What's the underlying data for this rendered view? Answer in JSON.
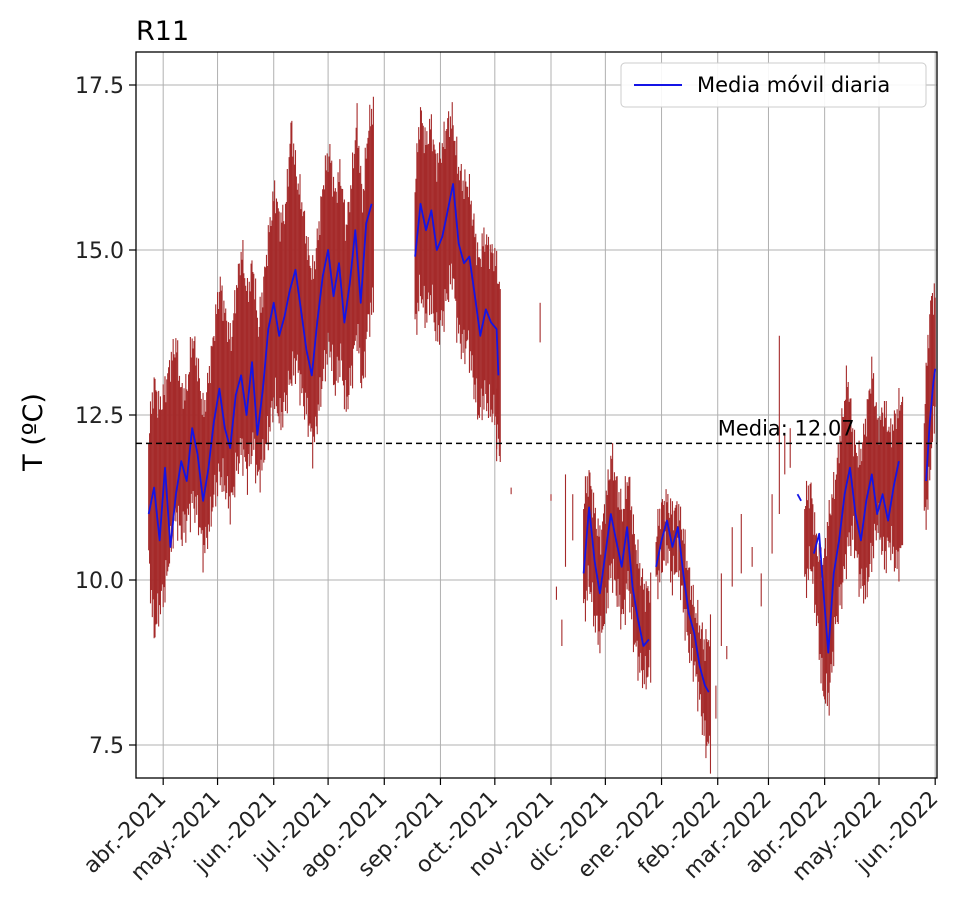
{
  "chart_data": {
    "type": "line",
    "title": "R11",
    "xlabel": "",
    "ylabel": "T (ºC)",
    "ylim": [
      7.0,
      18.0
    ],
    "xlim": [
      "2021-03-17",
      "2022-06-02"
    ],
    "yticks": [
      "7.5",
      "10.0",
      "12.5",
      "15.0",
      "17.5"
    ],
    "ytick_values": [
      7.5,
      10.0,
      12.5,
      15.0,
      17.5
    ],
    "xticks": [
      {
        "date": "2021-04-01",
        "label": "abr.-2021"
      },
      {
        "date": "2021-05-01",
        "label": "may.-2021"
      },
      {
        "date": "2021-06-01",
        "label": "jun.-2021"
      },
      {
        "date": "2021-07-01",
        "label": "jul.-2021"
      },
      {
        "date": "2021-08-01",
        "label": "ago.-2021"
      },
      {
        "date": "2021-09-01",
        "label": "sep.-2021"
      },
      {
        "date": "2021-10-01",
        "label": "oct.-2021"
      },
      {
        "date": "2021-11-01",
        "label": "nov.-2021"
      },
      {
        "date": "2021-12-01",
        "label": "dic.-2021"
      },
      {
        "date": "2022-01-01",
        "label": "ene.-2022"
      },
      {
        "date": "2022-02-01",
        "label": "feb.-2022"
      },
      {
        "date": "2022-03-01",
        "label": "mar.-2022"
      },
      {
        "date": "2022-04-01",
        "label": "abr.-2022"
      },
      {
        "date": "2022-05-01",
        "label": "may.-2022"
      },
      {
        "date": "2022-06-01",
        "label": "jun.-2022"
      }
    ],
    "grid": true,
    "legend_position": "top-right",
    "mean_line": {
      "value": 12.07,
      "label": "Media: 12.07",
      "style": "dashed",
      "color": "#000000"
    },
    "series": [
      {
        "name": "Media móvil diaria",
        "color": "#1414e6",
        "segments": [
          [
            [
              "2021-03-24",
              11.0
            ],
            [
              "2021-03-27",
              11.4
            ],
            [
              "2021-03-30",
              10.6
            ],
            [
              "2021-04-02",
              11.7
            ],
            [
              "2021-04-05",
              10.5
            ],
            [
              "2021-04-08",
              11.3
            ],
            [
              "2021-04-11",
              11.8
            ],
            [
              "2021-04-14",
              11.5
            ],
            [
              "2021-04-17",
              12.3
            ],
            [
              "2021-04-20",
              11.9
            ],
            [
              "2021-04-23",
              11.2
            ],
            [
              "2021-04-26",
              11.7
            ],
            [
              "2021-04-29",
              12.4
            ],
            [
              "2021-05-02",
              12.9
            ],
            [
              "2021-05-05",
              12.3
            ],
            [
              "2021-05-08",
              12.0
            ],
            [
              "2021-05-11",
              12.8
            ],
            [
              "2021-05-14",
              13.1
            ],
            [
              "2021-05-17",
              12.5
            ],
            [
              "2021-05-20",
              13.3
            ],
            [
              "2021-05-23",
              12.2
            ],
            [
              "2021-05-26",
              12.9
            ],
            [
              "2021-05-29",
              13.8
            ],
            [
              "2021-06-01",
              14.2
            ],
            [
              "2021-06-04",
              13.7
            ],
            [
              "2021-06-07",
              14.0
            ],
            [
              "2021-06-10",
              14.4
            ],
            [
              "2021-06-13",
              14.7
            ],
            [
              "2021-06-16",
              14.1
            ],
            [
              "2021-06-19",
              13.5
            ],
            [
              "2021-06-22",
              13.1
            ],
            [
              "2021-06-25",
              13.9
            ],
            [
              "2021-06-28",
              14.6
            ],
            [
              "2021-07-01",
              15.0
            ],
            [
              "2021-07-04",
              14.3
            ],
            [
              "2021-07-07",
              14.8
            ],
            [
              "2021-07-10",
              13.9
            ],
            [
              "2021-07-13",
              14.5
            ],
            [
              "2021-07-16",
              15.3
            ],
            [
              "2021-07-19",
              14.2
            ],
            [
              "2021-07-22",
              15.4
            ],
            [
              "2021-07-25",
              15.7
            ]
          ],
          [
            [
              "2021-08-18",
              14.9
            ],
            [
              "2021-08-21",
              15.7
            ],
            [
              "2021-08-24",
              15.3
            ],
            [
              "2021-08-27",
              15.6
            ],
            [
              "2021-08-30",
              15.0
            ],
            [
              "2021-09-02",
              15.2
            ],
            [
              "2021-09-05",
              15.6
            ],
            [
              "2021-09-08",
              16.0
            ],
            [
              "2021-09-11",
              15.1
            ],
            [
              "2021-09-14",
              14.8
            ],
            [
              "2021-09-17",
              14.9
            ],
            [
              "2021-09-20",
              14.3
            ],
            [
              "2021-09-23",
              13.7
            ],
            [
              "2021-09-26",
              14.1
            ],
            [
              "2021-09-29",
              13.9
            ],
            [
              "2021-10-02",
              13.8
            ],
            [
              "2021-10-03",
              13.1
            ]
          ],
          [
            [
              "2021-11-19",
              10.1
            ],
            [
              "2021-11-22",
              11.1
            ],
            [
              "2021-11-25",
              10.3
            ],
            [
              "2021-11-28",
              9.8
            ],
            [
              "2021-12-01",
              10.4
            ],
            [
              "2021-12-04",
              11.0
            ],
            [
              "2021-12-07",
              10.6
            ],
            [
              "2021-12-10",
              10.2
            ],
            [
              "2021-12-13",
              10.8
            ],
            [
              "2021-12-16",
              9.9
            ],
            [
              "2021-12-19",
              9.4
            ],
            [
              "2021-12-22",
              9.0
            ],
            [
              "2021-12-25",
              9.1
            ]
          ],
          [
            [
              "2021-12-29",
              10.2
            ],
            [
              "2022-01-01",
              10.6
            ],
            [
              "2022-01-04",
              10.9
            ],
            [
              "2022-01-07",
              10.5
            ],
            [
              "2022-01-10",
              10.8
            ],
            [
              "2022-01-13",
              10.1
            ],
            [
              "2022-01-16",
              9.5
            ],
            [
              "2022-01-19",
              9.2
            ],
            [
              "2022-01-22",
              8.7
            ],
            [
              "2022-01-25",
              8.4
            ],
            [
              "2022-01-27",
              8.3
            ]
          ],
          [
            [
              "2022-03-17",
              11.3
            ],
            [
              "2022-03-19",
              11.2
            ]
          ],
          [
            [
              "2022-03-26",
              10.4
            ],
            [
              "2022-03-29",
              10.7
            ],
            [
              "2022-04-01",
              9.6
            ],
            [
              "2022-04-03",
              8.9
            ],
            [
              "2022-04-06",
              10.1
            ],
            [
              "2022-04-09",
              10.6
            ],
            [
              "2022-04-12",
              11.3
            ],
            [
              "2022-04-15",
              11.7
            ],
            [
              "2022-04-18",
              11.0
            ],
            [
              "2022-04-21",
              10.6
            ],
            [
              "2022-04-24",
              11.2
            ],
            [
              "2022-04-27",
              11.6
            ],
            [
              "2022-04-30",
              11.0
            ],
            [
              "2022-05-03",
              11.3
            ],
            [
              "2022-05-06",
              10.9
            ],
            [
              "2022-05-09",
              11.4
            ],
            [
              "2022-05-12",
              11.8
            ]
          ],
          [
            [
              "2022-05-27",
              11.5
            ],
            [
              "2022-05-29",
              12.4
            ],
            [
              "2022-05-31",
              13.0
            ],
            [
              "2022-06-01",
              13.2
            ]
          ]
        ]
      },
      {
        "name": "",
        "color": "#a52a2a",
        "type": "range-bars",
        "segments": [
          {
            "start": "2021-03-24",
            "end": "2021-07-26",
            "lows": [
              10.3,
              9.2,
              9.6,
              9.9,
              10.5,
              11.0,
              10.7,
              10.9,
              11.2,
              11.0,
              10.4,
              10.8,
              11.3,
              11.6,
              11.4,
              11.1,
              11.7,
              12.0,
              11.6,
              12.1,
              11.5,
              11.9,
              12.3,
              12.8,
              12.4,
              12.7,
              13.1,
              13.3,
              12.8,
              12.5,
              12.0,
              12.6,
              13.2,
              13.6,
              12.9,
              13.4,
              12.6,
              13.1,
              13.8,
              12.9,
              13.9,
              14.2
            ],
            "highs": [
              12.2,
              13.0,
              12.6,
              12.9,
              13.3,
              13.6,
              12.8,
              12.9,
              13.7,
              13.2,
              12.5,
              13.1,
              13.8,
              14.5,
              14.0,
              13.6,
              14.4,
              15.0,
              14.3,
              14.8,
              13.8,
              14.5,
              15.3,
              15.9,
              15.4,
              15.6,
              16.9,
              16.1,
              15.7,
              15.0,
              14.6,
              15.3,
              16.1,
              16.5,
              15.8,
              16.2,
              15.3,
              16.0,
              17.0,
              15.7,
              16.8,
              17.2
            ]
          },
          {
            "start": "2021-08-18",
            "end": "2021-10-04",
            "lows": [
              13.8,
              14.4,
              14.0,
              14.3,
              13.7,
              13.9,
              14.3,
              14.7,
              13.8,
              13.5,
              13.6,
              13.0,
              12.5,
              12.8,
              12.6,
              12.5,
              11.8
            ],
            "highs": [
              16.0,
              17.1,
              16.6,
              16.9,
              16.3,
              16.5,
              16.9,
              17.0,
              16.3,
              16.0,
              16.0,
              15.4,
              14.8,
              15.2,
              15.0,
              14.9,
              14.4
            ]
          },
          {
            "start": "2021-11-19",
            "end": "2021-12-26",
            "lows": [
              9.5,
              10.0,
              9.4,
              9.1,
              9.6,
              10.2,
              9.8,
              9.4,
              10.0,
              9.1,
              8.7,
              8.5,
              8.7
            ],
            "highs": [
              11.2,
              11.6,
              11.0,
              10.6,
              11.2,
              11.9,
              11.4,
              11.0,
              11.6,
              10.7,
              10.2,
              9.8,
              9.9
            ]
          },
          {
            "start": "2021-12-29",
            "end": "2022-01-28",
            "lows": [
              9.9,
              10.2,
              10.5,
              10.0,
              10.3,
              9.6,
              9.0,
              8.7,
              8.2,
              7.6,
              7.4
            ],
            "highs": [
              10.7,
              11.1,
              11.2,
              11.0,
              11.1,
              10.7,
              10.1,
              9.6,
              9.3,
              9.0,
              9.2
            ]
          },
          {
            "start": "2022-03-21",
            "end": "2022-05-14",
            "lows": [
              9.9,
              10.3,
              9.4,
              8.3,
              8.2,
              9.3,
              9.8,
              10.5,
              10.7,
              10.0,
              9.8,
              10.4,
              10.9,
              10.3,
              10.6,
              10.2,
              10.5
            ],
            "highs": [
              11.2,
              11.4,
              10.5,
              10.2,
              11.0,
              11.5,
              12.3,
              13.1,
              12.1,
              11.8,
              12.4,
              13.2,
              12.3,
              12.6,
              12.2,
              12.5,
              12.8
            ]
          },
          {
            "start": "2022-05-26",
            "end": "2022-06-01",
            "lows": [
              10.9,
              11.2,
              12.0,
              12.6
            ],
            "highs": [
              12.5,
              13.6,
              14.3,
              14.3
            ]
          }
        ],
        "sparse": [
          {
            "date": "2021-10-02",
            "low": 11.8,
            "high": 12.9
          },
          {
            "date": "2021-10-10",
            "low": 11.3,
            "high": 11.4
          },
          {
            "date": "2021-10-26",
            "low": 13.6,
            "high": 14.2
          },
          {
            "date": "2021-11-09",
            "low": 10.2,
            "high": 11.6
          },
          {
            "date": "2021-11-01",
            "low": 11.2,
            "high": 11.3
          },
          {
            "date": "2021-11-04",
            "low": 9.7,
            "high": 9.9
          },
          {
            "date": "2021-11-07",
            "low": 9.0,
            "high": 9.4
          },
          {
            "date": "2021-11-13",
            "low": 10.6,
            "high": 11.3
          },
          {
            "date": "2022-01-31",
            "low": 7.9,
            "high": 8.4
          },
          {
            "date": "2022-02-03",
            "low": 9.0,
            "high": 10.1
          },
          {
            "date": "2022-02-06",
            "low": 8.8,
            "high": 9.0
          },
          {
            "date": "2022-02-09",
            "low": 9.9,
            "high": 10.8
          },
          {
            "date": "2022-02-14",
            "low": 10.1,
            "high": 11.0
          },
          {
            "date": "2022-02-20",
            "low": 10.2,
            "high": 10.5
          },
          {
            "date": "2022-02-25",
            "low": 9.6,
            "high": 10.1
          },
          {
            "date": "2022-03-03",
            "low": 10.4,
            "high": 11.3
          },
          {
            "date": "2022-03-07",
            "low": 11.0,
            "high": 13.7
          },
          {
            "date": "2022-03-10",
            "low": 11.6,
            "high": 12.2
          },
          {
            "date": "2022-03-13",
            "low": 11.7,
            "high": 12.3
          }
        ]
      }
    ]
  }
}
